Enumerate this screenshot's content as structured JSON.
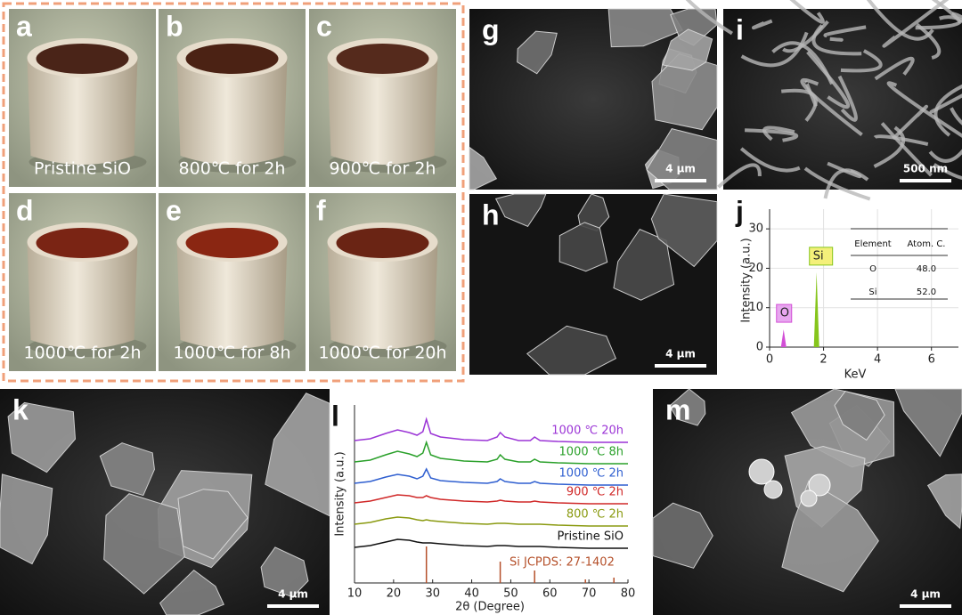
{
  "photos": [
    {
      "label": "a",
      "caption": "Pristine SiO"
    },
    {
      "label": "b",
      "caption": "800℃ for 2h"
    },
    {
      "label": "c",
      "caption": "900℃ for 2h"
    },
    {
      "label": "d",
      "caption": "1000℃ for 2h"
    },
    {
      "label": "e",
      "caption": "1000℃ for 8h"
    },
    {
      "label": "f",
      "caption": "1000℃ for 20h"
    }
  ],
  "sem": [
    {
      "label": "g",
      "scale_bar": "4 μm"
    },
    {
      "label": "i",
      "scale_bar": "500 nm"
    },
    {
      "label": "h",
      "scale_bar": "4 μm"
    },
    {
      "label": "k",
      "scale_bar": "4 μm"
    },
    {
      "label": "m",
      "scale_bar": "4 μm"
    }
  ],
  "chart_data": [
    {
      "type": "eds",
      "panel_label": "j",
      "x_label": "KeV",
      "y_label": "Intensity (a.u.)",
      "xlim": [
        0,
        7
      ],
      "xticks": [
        0,
        2,
        4,
        6
      ],
      "ylim": [
        0,
        35
      ],
      "yticks": [
        0,
        10,
        20,
        30
      ],
      "grid": true,
      "series": [
        {
          "name": "O",
          "color": "#d24fd6",
          "box_color": "#e7a6ef",
          "x": [
            0.52
          ],
          "values": [
            4.5
          ]
        },
        {
          "name": "Si",
          "color": "#86c51c",
          "box_color": "#f4f07a",
          "x": [
            1.74
          ],
          "values": [
            19
          ]
        }
      ],
      "table": {
        "header": [
          "Element",
          "Atom. C."
        ],
        "rows": [
          [
            "O",
            "48.0"
          ],
          [
            "Si",
            "52.0"
          ]
        ]
      }
    },
    {
      "type": "xrd",
      "panel_label": "l",
      "x_label": "2θ (Degree)",
      "y_label": "Intensity (a.u.)",
      "xlim": [
        10,
        80
      ],
      "xticks": [
        10,
        20,
        30,
        40,
        50,
        60,
        70,
        80
      ],
      "ylim": [
        0,
        100
      ],
      "x": [
        10,
        14,
        18,
        21,
        24,
        26,
        27.5,
        28.4,
        29.5,
        32,
        38,
        44,
        46.5,
        47.3,
        48.5,
        52,
        55,
        56.1,
        57.5,
        62,
        70,
        80
      ],
      "series": [
        {
          "name": "1000 ℃ 20h",
          "color": "#9b34d6",
          "values": [
            80,
            81,
            84,
            86,
            84.5,
            83,
            85,
            92,
            84,
            82,
            80.5,
            80,
            82,
            84.5,
            82,
            80,
            80,
            82,
            80,
            79.5,
            79,
            79
          ]
        },
        {
          "name": "1000 ℃ 8h",
          "color": "#2aa02a",
          "values": [
            68,
            69,
            72,
            74,
            72.5,
            71,
            73,
            79,
            72,
            70,
            68.5,
            68,
            69.5,
            72,
            69.5,
            68,
            68,
            69.5,
            68,
            67.5,
            67,
            67
          ]
        },
        {
          "name": "1000 ℃ 2h",
          "color": "#2f5fd0",
          "values": [
            56,
            57,
            59.5,
            61,
            60,
            58.5,
            60,
            64,
            59,
            57.5,
            56.5,
            56,
            57,
            58.5,
            57,
            56,
            56,
            57,
            56,
            55.5,
            55,
            55
          ]
        },
        {
          "name": "900 ℃ 2h",
          "color": "#d02828",
          "values": [
            45,
            46,
            48,
            49.5,
            49,
            48,
            48,
            49,
            48,
            47,
            46,
            45.5,
            46,
            46.5,
            46,
            45.5,
            45.5,
            46,
            45.5,
            45,
            44.5,
            44.5
          ]
        },
        {
          "name": "800 ℃ 2h",
          "color": "#8a9a10",
          "values": [
            33,
            34,
            36,
            37,
            36.5,
            35.5,
            35,
            35.5,
            35,
            34.5,
            33.5,
            33,
            33.5,
            33.5,
            33.5,
            33,
            33,
            33,
            33,
            32.5,
            32,
            32
          ]
        },
        {
          "name": "Pristine SiO",
          "color": "#111111",
          "values": [
            20,
            21,
            23,
            24.5,
            24,
            23,
            22.5,
            22.5,
            22.5,
            22,
            21,
            20.5,
            21,
            21,
            21,
            20.5,
            20.5,
            20.5,
            20.5,
            20,
            19.5,
            19.5
          ]
        }
      ],
      "reference": {
        "name": "Si JCPDS: 27-1402",
        "color": "#b5502a",
        "x": [
          28.4,
          47.3,
          56.1,
          69.1,
          76.4
        ],
        "values": [
          20.5,
          12,
          7,
          2,
          3
        ]
      }
    }
  ]
}
